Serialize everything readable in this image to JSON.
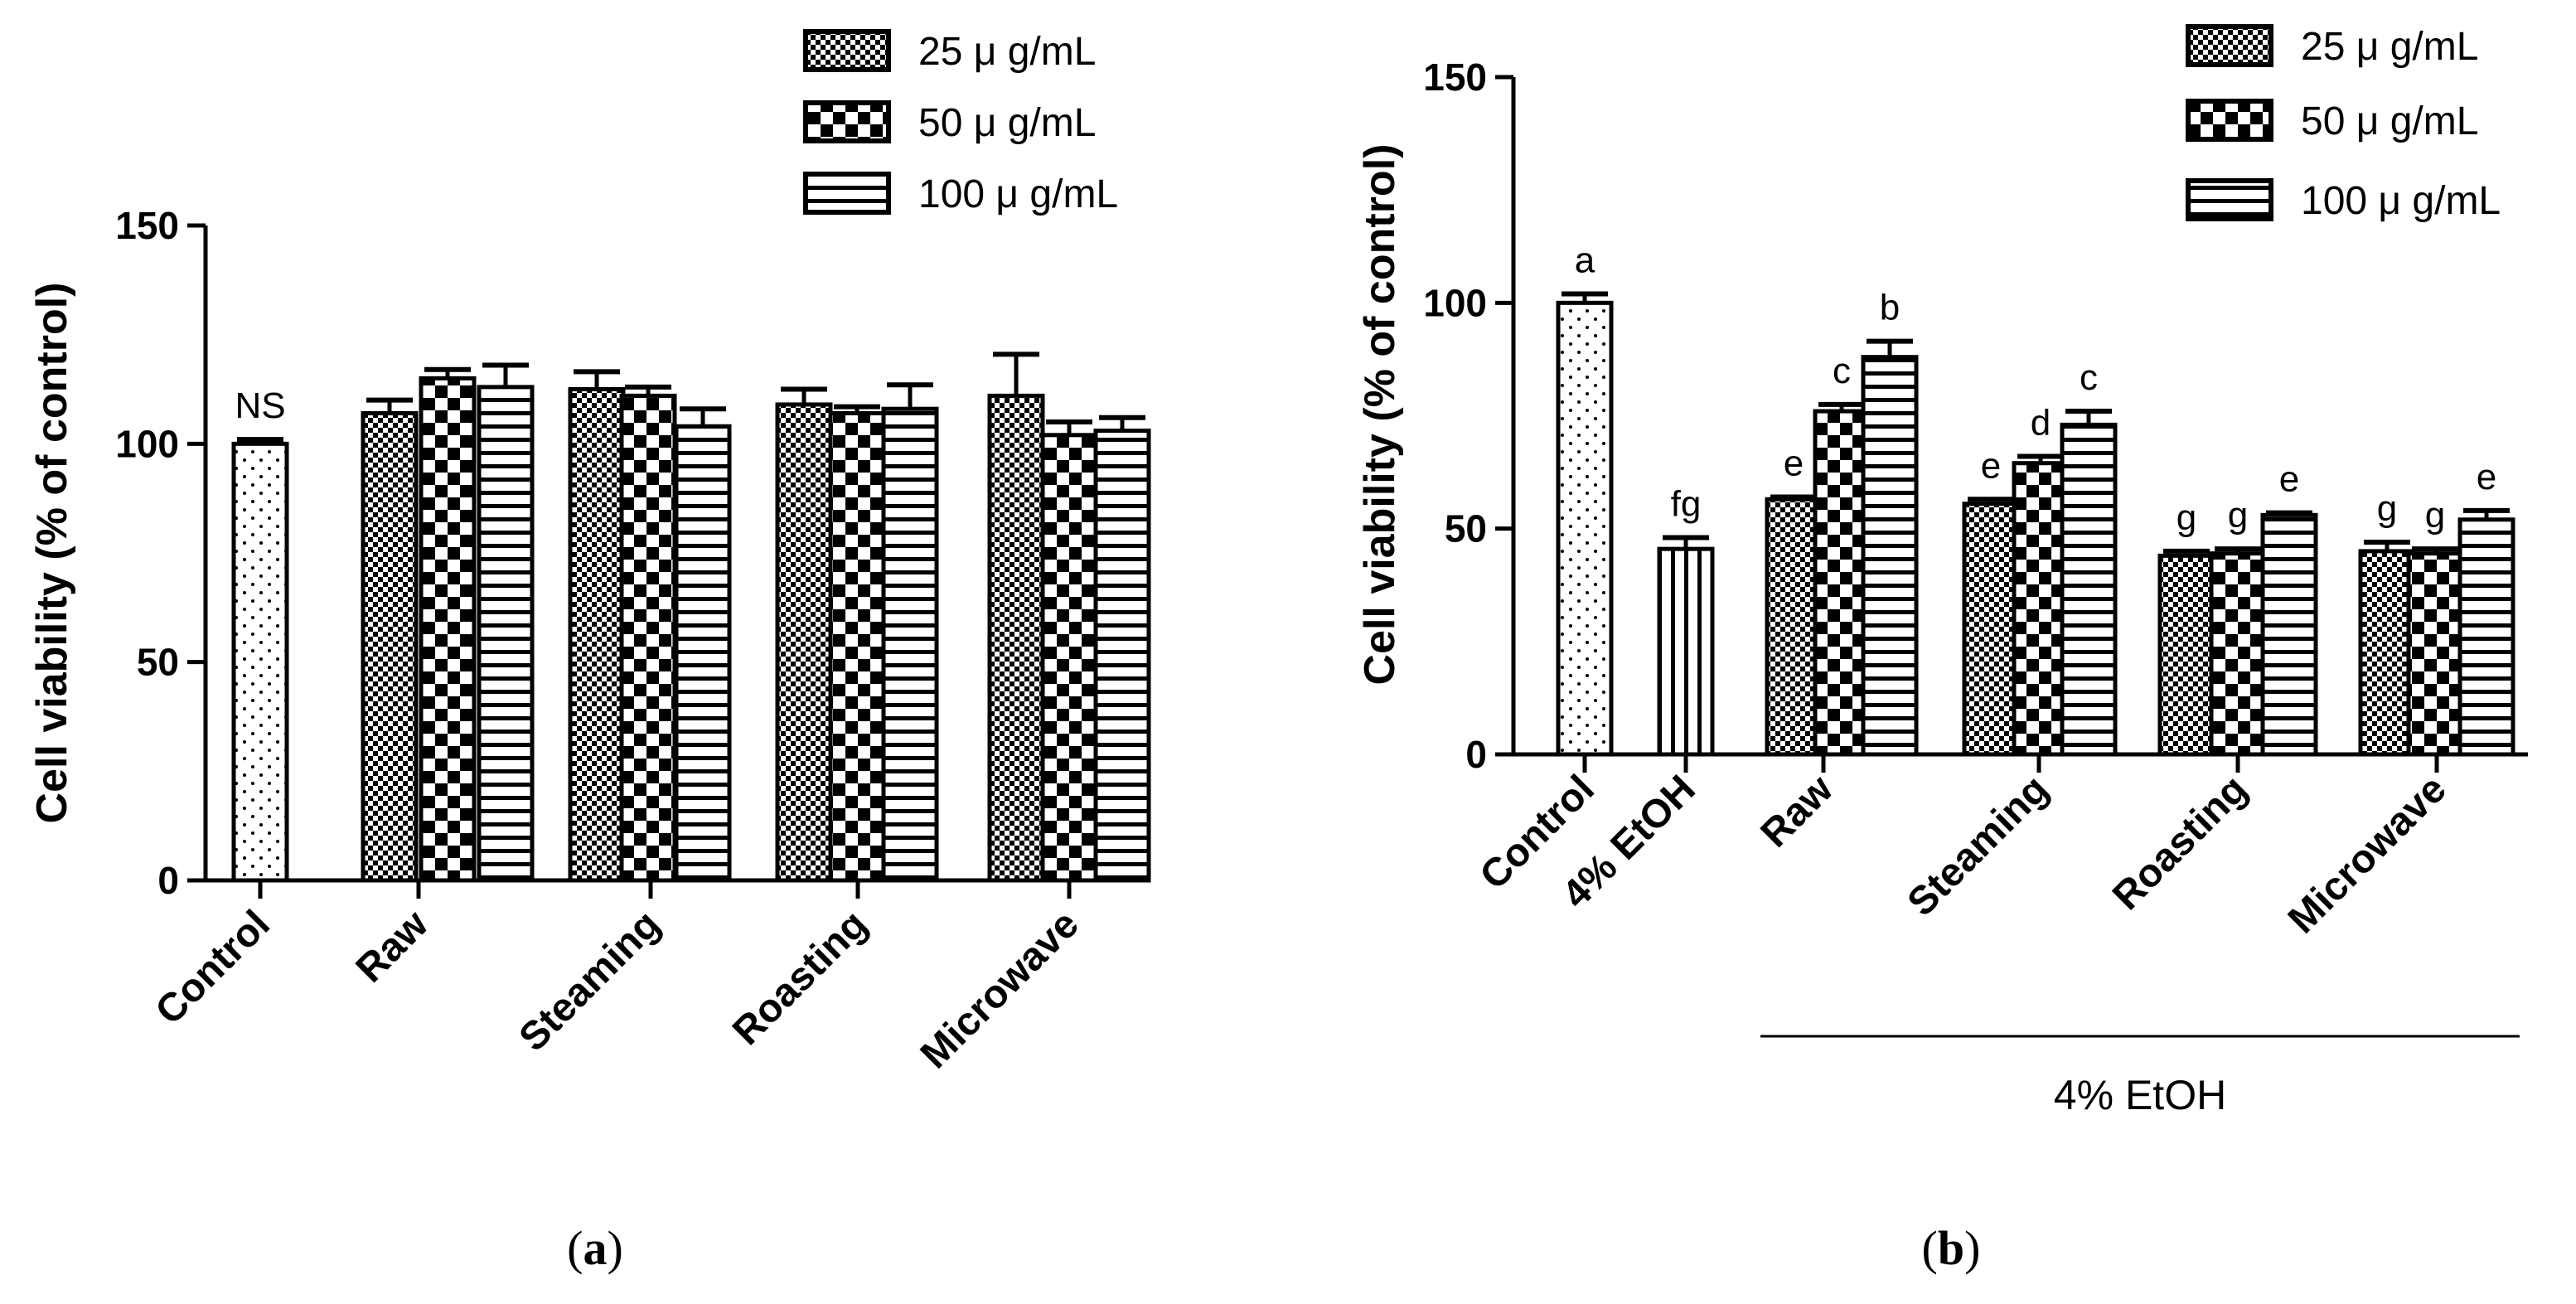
{
  "chart_data": [
    {
      "type": "bar",
      "panel": "a",
      "caption_pre": "(",
      "caption_letter": "a",
      "caption_post": ")",
      "ylabel": "Cell viability (% of control)",
      "ylim": [
        0,
        150
      ],
      "yticks": [
        0,
        50,
        100,
        150
      ],
      "groups": [
        {
          "label": "Control",
          "bars": [
            {
              "value": 100,
              "err": 1,
              "pattern": "dots",
              "letter": "NS"
            }
          ]
        },
        {
          "label": "Raw",
          "bars": [
            {
              "value": 107,
              "err": 3,
              "pattern": "fine-check"
            },
            {
              "value": 115,
              "err": 2,
              "pattern": "check"
            },
            {
              "value": 113,
              "err": 5,
              "pattern": "hstripe"
            }
          ]
        },
        {
          "label": "Steaming",
          "bars": [
            {
              "value": 112.5,
              "err": 4,
              "pattern": "fine-check"
            },
            {
              "value": 111,
              "err": 2,
              "pattern": "check"
            },
            {
              "value": 104,
              "err": 4,
              "pattern": "hstripe"
            }
          ]
        },
        {
          "label": "Roasting",
          "bars": [
            {
              "value": 109,
              "err": 3.5,
              "pattern": "fine-check"
            },
            {
              "value": 107,
              "err": 1.5,
              "pattern": "check"
            },
            {
              "value": 108,
              "err": 5.5,
              "pattern": "hstripe"
            }
          ]
        },
        {
          "label": "Microwave",
          "bars": [
            {
              "value": 111,
              "err": 9.5,
              "pattern": "fine-check"
            },
            {
              "value": 102,
              "err": 3,
              "pattern": "check"
            },
            {
              "value": 103,
              "err": 3,
              "pattern": "hstripe"
            }
          ]
        }
      ],
      "legend": [
        {
          "label": "25 μ g/mL",
          "pattern": "fine-check"
        },
        {
          "label": "50 μ g/mL",
          "pattern": "check"
        },
        {
          "label": "100 μ g/mL",
          "pattern": "hstripe"
        }
      ]
    },
    {
      "type": "bar",
      "panel": "b",
      "caption_pre": "(",
      "caption_letter": "b",
      "caption_post": ")",
      "ylabel": "Cell viability (% of control)",
      "ylim": [
        0,
        150
      ],
      "yticks": [
        0,
        50,
        100,
        150
      ],
      "group_label": "4% EtOH",
      "groups": [
        {
          "label": "Control",
          "bars": [
            {
              "value": 100,
              "err": 2,
              "pattern": "dots",
              "letter": "a"
            }
          ]
        },
        {
          "label": "4% EtOH",
          "bars": [
            {
              "value": 45.5,
              "err": 2.5,
              "pattern": "vstripe",
              "letter": "fg"
            }
          ]
        },
        {
          "label": "Raw",
          "bars": [
            {
              "value": 56.5,
              "err": 0.5,
              "pattern": "fine-check",
              "letter": "e"
            },
            {
              "value": 76,
              "err": 1.5,
              "pattern": "check",
              "letter": "c"
            },
            {
              "value": 88,
              "err": 3.5,
              "pattern": "hstripe",
              "letter": "b"
            }
          ]
        },
        {
          "label": "Steaming",
          "bars": [
            {
              "value": 55.5,
              "err": 1,
              "pattern": "fine-check",
              "letter": "e"
            },
            {
              "value": 64.5,
              "err": 1.5,
              "pattern": "check",
              "letter": "d"
            },
            {
              "value": 73,
              "err": 3,
              "pattern": "hstripe",
              "letter": "c"
            }
          ]
        },
        {
          "label": "Roasting",
          "bars": [
            {
              "value": 44,
              "err": 1,
              "pattern": "fine-check",
              "letter": "g"
            },
            {
              "value": 44.5,
              "err": 1,
              "pattern": "check",
              "letter": "g"
            },
            {
              "value": 53,
              "err": 0.5,
              "pattern": "hstripe",
              "letter": "e"
            }
          ]
        },
        {
          "label": "Microwave",
          "bars": [
            {
              "value": 45,
              "err": 2,
              "pattern": "fine-check",
              "letter": "g"
            },
            {
              "value": 44.5,
              "err": 1,
              "pattern": "check",
              "letter": "g"
            },
            {
              "value": 52,
              "err": 2,
              "pattern": "hstripe",
              "letter": "e"
            }
          ]
        }
      ],
      "legend": [
        {
          "label": "25 μ g/mL",
          "pattern": "fine-check"
        },
        {
          "label": "50 μ g/mL",
          "pattern": "check"
        },
        {
          "label": "100 μ g/mL",
          "pattern": "hstripe"
        }
      ]
    }
  ]
}
